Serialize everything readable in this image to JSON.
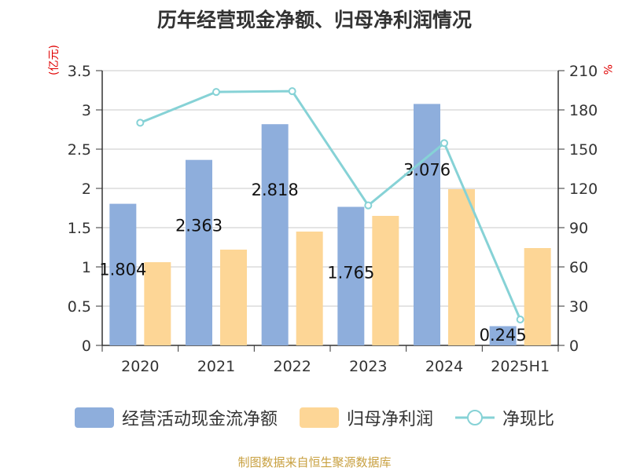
{
  "chart_data": {
    "type": "bar",
    "title": "历年经营现金净额、归母净利润情况",
    "categories": [
      "2020",
      "2021",
      "2022",
      "2023",
      "2024",
      "2025H1"
    ],
    "y_left_unit": "(亿元)",
    "y_right_unit": "%",
    "y_left_ticks": [
      "3.5",
      "3",
      "2.5",
      "2",
      "1.5",
      "1",
      "0.5",
      "0"
    ],
    "y_right_ticks": [
      "210",
      "180",
      "150",
      "120",
      "90",
      "60",
      "30",
      "0"
    ],
    "ylim": [
      0,
      3.5
    ],
    "y2lim": [
      0,
      210
    ],
    "grid": true,
    "legend_position": "bottom",
    "series": [
      {
        "name": "经营活动现金流净额",
        "kind": "bar",
        "axis": "left",
        "color": "#8eaedc",
        "values": [
          1.804,
          2.363,
          2.818,
          1.765,
          3.076,
          0.245
        ],
        "labels": [
          "1.804",
          "2.363",
          "2.818",
          "1.765",
          "3.076",
          "0.245"
        ]
      },
      {
        "name": "归母净利润",
        "kind": "bar",
        "axis": "left",
        "color": "#fdd696",
        "values": [
          1.06,
          1.22,
          1.45,
          1.65,
          1.99,
          1.24
        ]
      },
      {
        "name": "净现比",
        "kind": "line",
        "axis": "right",
        "color": "#86d2d6",
        "values": [
          170.2,
          193.7,
          194.3,
          107.0,
          154.6,
          19.8
        ]
      }
    ],
    "source": "制图数据来自恒生聚源数据库"
  }
}
